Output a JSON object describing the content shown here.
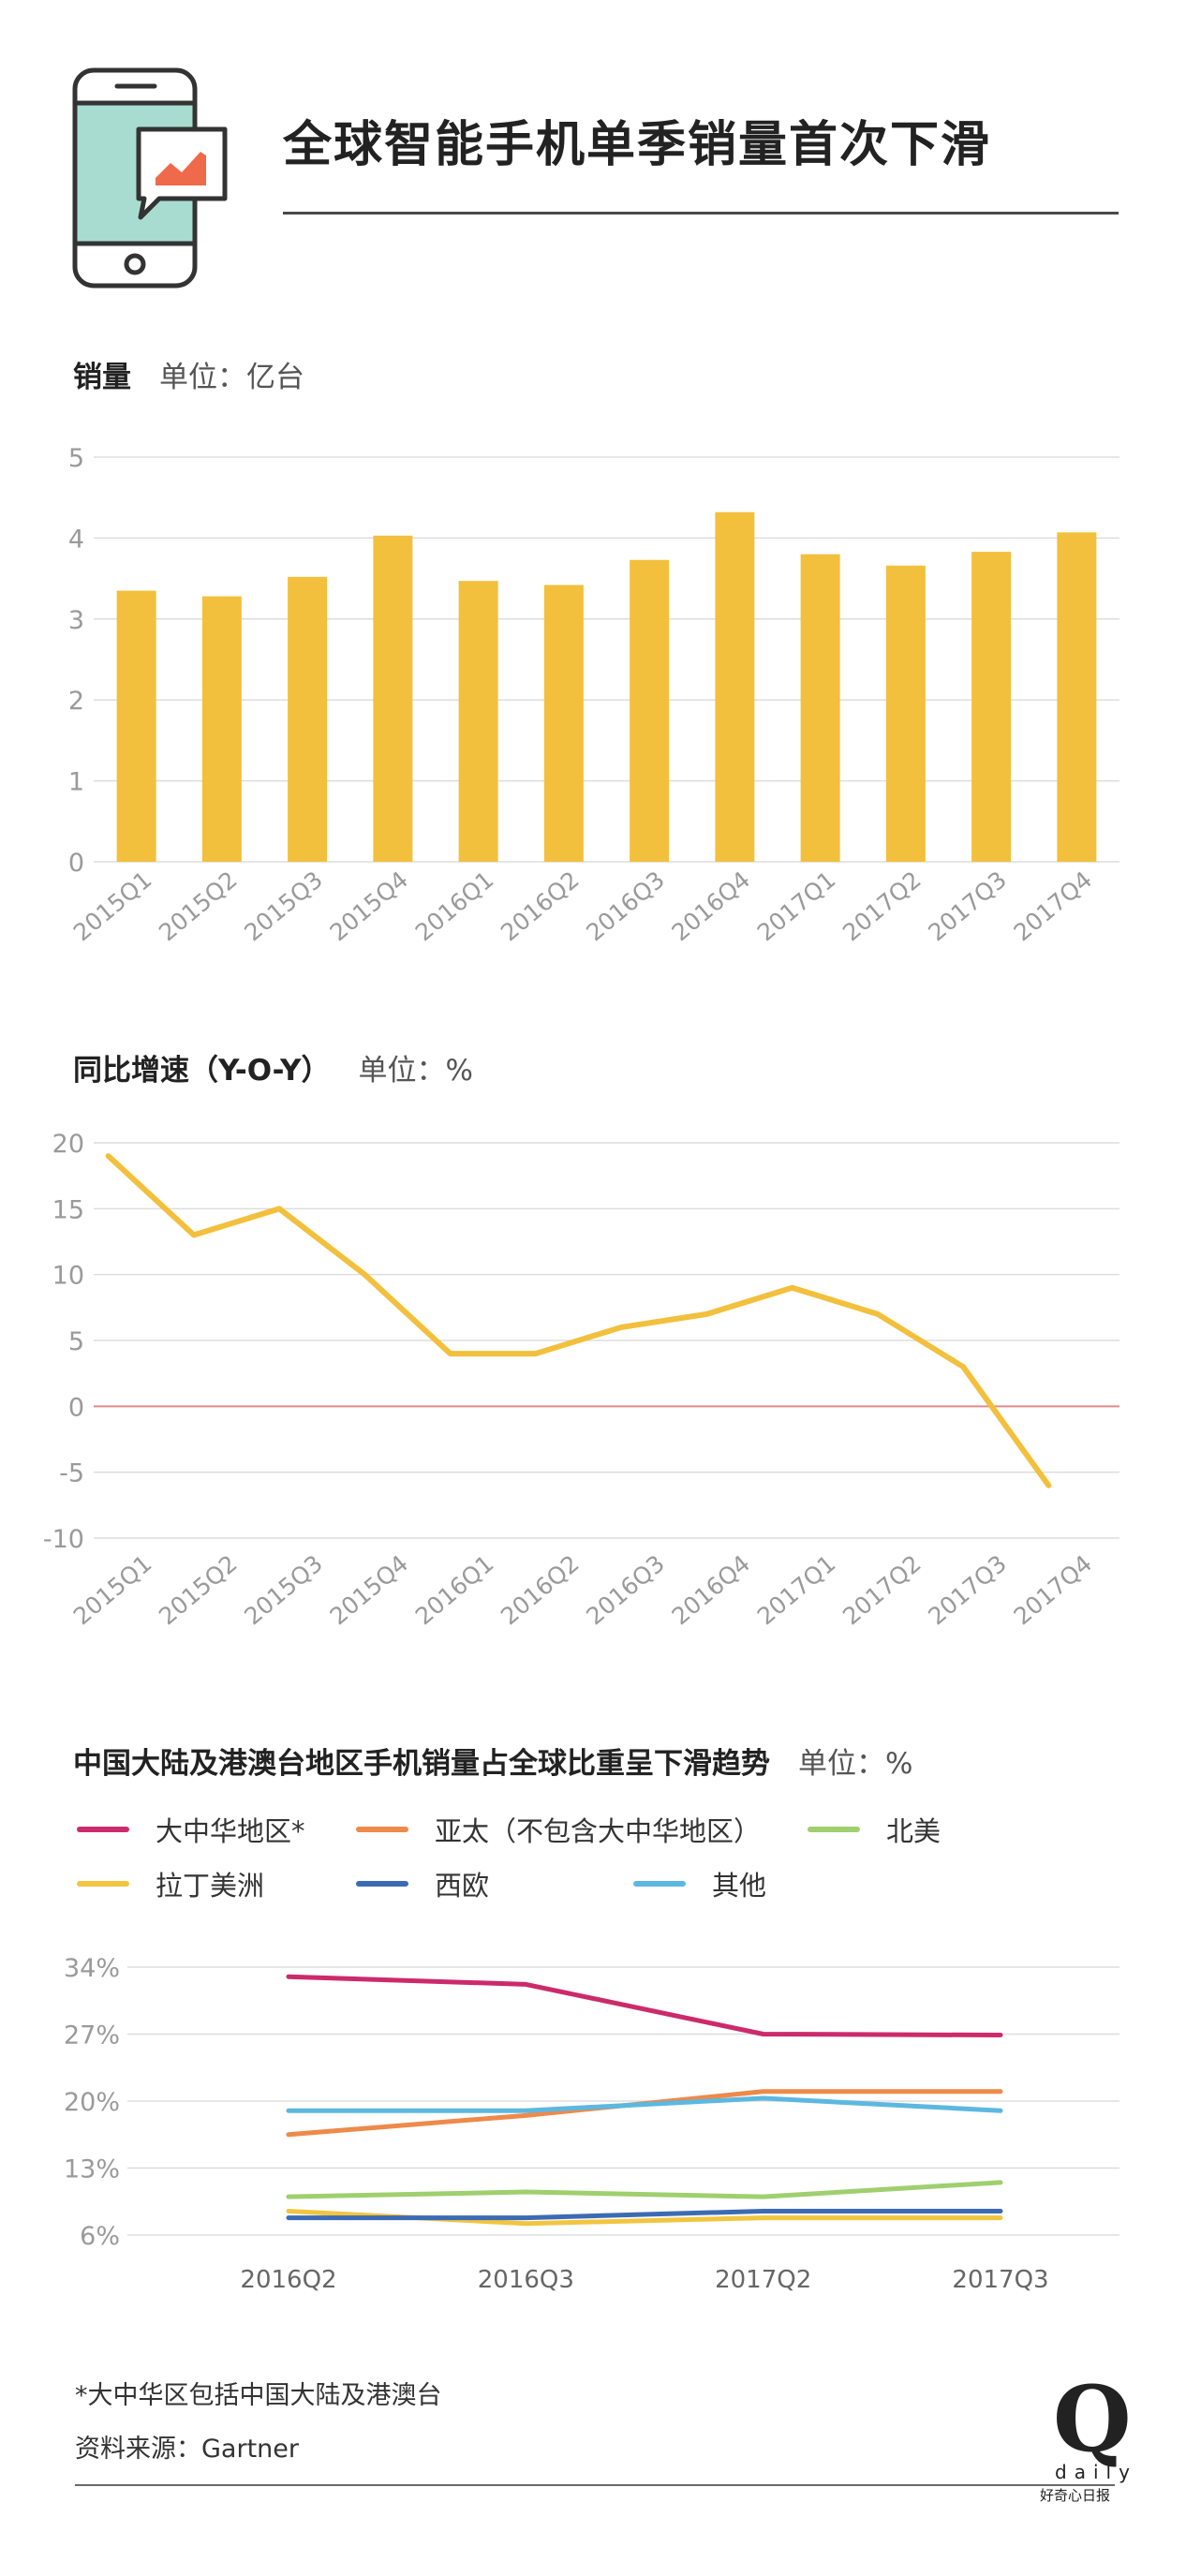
{
  "title": "全球智能手机单季销量首次下滑",
  "colors": {
    "bar": "#f2c03c",
    "line": "#f2c03c",
    "zero_line": "#e08a8a",
    "grid": "#dddddd",
    "axis_text": "#9a9a9a",
    "phone_screen": "#a8dcd1"
  },
  "sections": {
    "sales": {
      "label": "销量",
      "unit": "单位：亿台"
    },
    "yoy": {
      "label": "同比增速（Y-O-Y）",
      "unit": "单位：%"
    },
    "share": {
      "label": "中国大陆及港澳台地区手机销量占全球比重呈下滑趋势",
      "unit": "单位：%"
    }
  },
  "footnotes": {
    "note": "*大中华区包括中国大陆及港澳台",
    "source": "资料来源：Gartner"
  },
  "logo": {
    "mark": "Q",
    "word": "daily",
    "cn": "好奇心日报"
  },
  "chart_data": [
    {
      "type": "bar",
      "title": "销量",
      "ylabel": "单位：亿台",
      "categories": [
        "2015Q1",
        "2015Q2",
        "2015Q3",
        "2015Q4",
        "2016Q1",
        "2016Q2",
        "2016Q3",
        "2016Q4",
        "2017Q1",
        "2017Q2",
        "2017Q3",
        "2017Q4"
      ],
      "values": [
        3.35,
        3.28,
        3.52,
        4.03,
        3.47,
        3.42,
        3.73,
        4.32,
        3.8,
        3.66,
        3.83,
        4.07
      ],
      "ylim": [
        0,
        5
      ],
      "yticks": [
        0,
        1,
        2,
        3,
        4,
        5
      ],
      "grid": true
    },
    {
      "type": "line",
      "title": "同比增速（Y-O-Y）",
      "ylabel": "单位：%",
      "categories": [
        "2015Q1",
        "2015Q2",
        "2015Q3",
        "2015Q4",
        "2016Q1",
        "2016Q2",
        "2016Q3",
        "2016Q4",
        "2017Q1",
        "2017Q2",
        "2017Q3",
        "2017Q4"
      ],
      "values": [
        19,
        13,
        15,
        10,
        4,
        4,
        6,
        7,
        9,
        7,
        3,
        -6
      ],
      "ylim": [
        -10,
        20
      ],
      "yticks": [
        -10,
        -5,
        0,
        5,
        10,
        15,
        20
      ],
      "grid": true
    },
    {
      "type": "line",
      "title": "中国大陆及港澳台地区手机销量占全球比重呈下滑趋势",
      "ylabel": "单位：%",
      "categories": [
        "2016Q2",
        "2016Q3",
        "2017Q2",
        "2017Q3"
      ],
      "x_positions": [
        0,
        1,
        2,
        3
      ],
      "ylim": [
        6,
        34
      ],
      "yticks": [
        6,
        13,
        20,
        27,
        34
      ],
      "ytick_labels": [
        "6%",
        "13%",
        "20%",
        "27%",
        "34%"
      ],
      "legend": "top",
      "series": [
        {
          "name": "大中华地区*",
          "color": "#cc2a6b",
          "values": [
            33.0,
            32.2,
            27.0,
            26.9
          ]
        },
        {
          "name": "亚太（不包含大中华地区）",
          "color": "#ee8a4a",
          "values": [
            16.5,
            18.5,
            21.0,
            21.0
          ]
        },
        {
          "name": "北美",
          "color": "#9fcf6e",
          "values": [
            10.0,
            10.5,
            10.0,
            11.5
          ]
        },
        {
          "name": "拉丁美洲",
          "color": "#f2c540",
          "values": [
            8.5,
            7.2,
            7.8,
            7.8
          ]
        },
        {
          "name": "西欧",
          "color": "#3d6bb3",
          "values": [
            7.8,
            7.8,
            8.5,
            8.5
          ]
        },
        {
          "name": "其他",
          "color": "#5cb8e0",
          "values": [
            19.0,
            19.0,
            20.3,
            19.0
          ]
        }
      ]
    }
  ]
}
